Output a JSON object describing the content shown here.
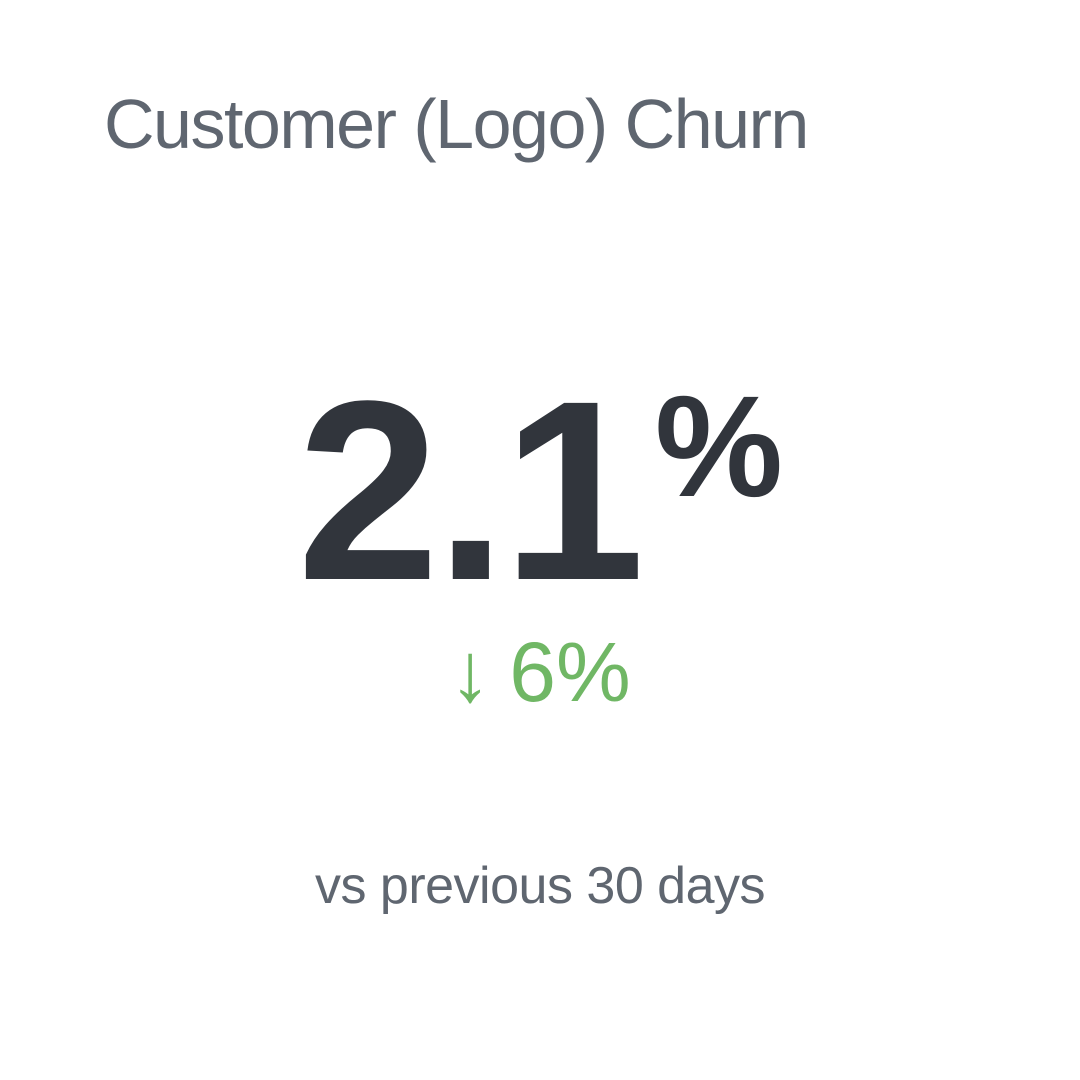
{
  "card": {
    "title": "Customer (Logo) Churn",
    "metric": {
      "value": "2.1",
      "unit": "%"
    },
    "change": {
      "arrow": "↓",
      "direction": "down",
      "value": "6%",
      "color": "#70b765"
    },
    "comparison": "vs previous 30 days"
  },
  "colors": {
    "background": "#ffffff",
    "title_text": "#5f6670",
    "metric_text": "#31353c",
    "positive_change": "#70b765"
  },
  "chart_data": {
    "type": "number",
    "title": "Customer (Logo) Churn",
    "value": 2.1,
    "unit": "%",
    "change_percent": -6,
    "change_direction": "down",
    "change_is_positive": true,
    "comparison_period": "vs previous 30 days"
  }
}
